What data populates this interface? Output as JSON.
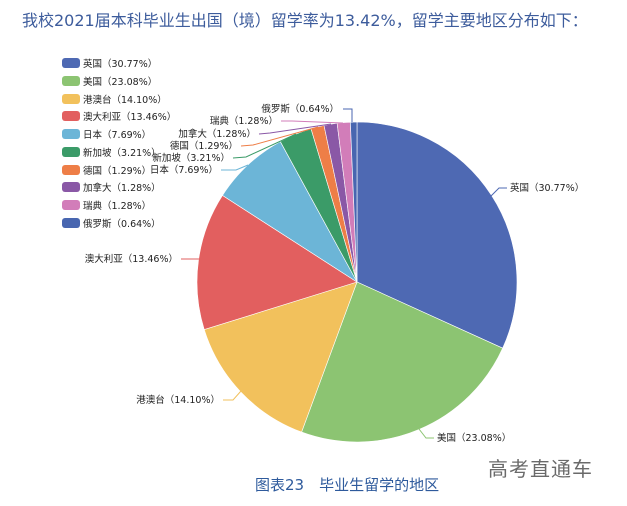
{
  "header": {
    "title": "我校2021届本科毕业生出国（境）留学率为13.42%，留学主要地区分布如下："
  },
  "caption": "图表23　毕业生留学的地区",
  "watermark": "高考直通车",
  "chart_data": {
    "type": "pie",
    "title": "图表23　毕业生留学的地区",
    "start_angle": "12 o'clock, clockwise",
    "legend_position": "top-left",
    "categories": [
      "英国",
      "美国",
      "港澳台",
      "澳大利亚",
      "日本",
      "新加坡",
      "德国",
      "加拿大",
      "瑞典",
      "俄罗斯"
    ],
    "values": [
      30.77,
      23.08,
      14.1,
      13.46,
      7.69,
      3.21,
      1.29,
      1.28,
      1.28,
      0.64
    ],
    "unit": "%",
    "colors": [
      "#4e69b3",
      "#8cc472",
      "#f2c15c",
      "#e25f5f",
      "#6cb5d7",
      "#3b9b68",
      "#ee7e47",
      "#8a58a6",
      "#d27db9",
      "#4866b0"
    ],
    "labels": [
      "英国（30.77%）",
      "美国（23.08%）",
      "港澳台（14.10%）",
      "澳大利亚（13.46%）",
      "日本（7.69%）",
      "新加坡（3.21%）",
      "德国（1.29%）",
      "加拿大（1.28%）",
      "瑞典（1.28%）",
      "俄罗斯（0.64%）"
    ]
  }
}
